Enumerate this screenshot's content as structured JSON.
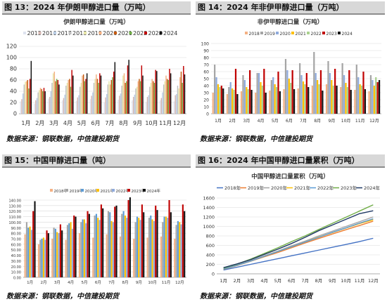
{
  "panels": [
    {
      "title": "图 13：2024 年伊朗甲醇进口量（万吨）",
      "source": "数据来源：钢联数据，中信建投期货"
    },
    {
      "title": "图 14：2024 年非伊甲醇进口量（万吨）",
      "source": "数据来源：钢联数据，中信建投期货"
    },
    {
      "title": "图 15：中国甲醇进口量（吨）",
      "source": "数据来源：钢联数据，中信建投期货"
    },
    {
      "title": "图 16：2024 年中国甲醇进口量累积（万吨）",
      "source": "数据来源：钢联数据，中信建投期货"
    }
  ],
  "chart_data": [
    {
      "type": "bar",
      "title": "伊朗甲醇进口量（万吨）",
      "categories": [
        "1月",
        "2月",
        "3月",
        "4月",
        "5月",
        "6月",
        "7月",
        "8月",
        "9月",
        "10月",
        "11月",
        "12月"
      ],
      "ylim": [
        0,
        120
      ],
      "yticks": [
        0,
        20,
        40,
        60,
        80,
        100,
        120
      ],
      "grid": true,
      "legend": "top",
      "series": [
        {
          "name": "2015",
          "color": "#dfe3f0",
          "values": [
            22,
            18,
            27,
            24,
            23,
            26,
            20,
            25,
            24,
            21,
            24,
            22
          ]
        },
        {
          "name": "2016",
          "color": "#d5b7b2",
          "values": [
            26,
            24,
            30,
            28,
            29,
            32,
            29,
            32,
            30,
            30,
            28,
            33
          ]
        },
        {
          "name": "2017",
          "color": "#b8cce4",
          "values": [
            36,
            28,
            40,
            34,
            33,
            38,
            35,
            36,
            34,
            33,
            38,
            35
          ]
        },
        {
          "name": "2018",
          "color": "#bfbfbf",
          "values": [
            52,
            38,
            55,
            50,
            48,
            55,
            52,
            50,
            45,
            48,
            52,
            50
          ]
        },
        {
          "name": "2019",
          "color": "#e7e6a8",
          "values": [
            57,
            42,
            72,
            55,
            55,
            62,
            58,
            68,
            48,
            55,
            58,
            45
          ]
        },
        {
          "name": "2020",
          "color": "#f4b183",
          "values": [
            58,
            46,
            75,
            60,
            68,
            70,
            52,
            72,
            58,
            62,
            68,
            65
          ]
        },
        {
          "name": "2021",
          "color": "#c55a11",
          "values": [
            60,
            44,
            58,
            62,
            70,
            62,
            60,
            55,
            62,
            58,
            62,
            75
          ]
        },
        {
          "name": "2022",
          "color": "#70ad47",
          "values": [
            45,
            40,
            62,
            48,
            58,
            55,
            65,
            58,
            58,
            55,
            60,
            55
          ]
        },
        {
          "name": "2023",
          "color": "#c00000",
          "values": [
            62,
            46,
            60,
            78,
            62,
            72,
            75,
            86,
            86,
            78,
            80,
            85
          ]
        },
        {
          "name": "2024",
          "color": "#111111",
          "values": [
            94,
            40,
            52,
            68,
            72,
            68,
            92,
            96,
            68,
            76,
            72,
            70
          ]
        }
      ]
    },
    {
      "type": "bar",
      "title": "非伊甲醇进口量（万吨）",
      "categories": [
        "1月",
        "2月",
        "3月",
        "4月",
        "5月",
        "6月",
        "7月",
        "8月",
        "9月",
        "10月",
        "11月",
        "12月"
      ],
      "ylim": [
        0,
        100
      ],
      "yticks": [
        0,
        10,
        20,
        30,
        40,
        50,
        60,
        70,
        80,
        90,
        100
      ],
      "grid": true,
      "legend": "top",
      "series": [
        {
          "name": "2018",
          "color": "#f4b183",
          "values": [
            30,
            28,
            32,
            30,
            33,
            35,
            36,
            40,
            42,
            38,
            34,
            32
          ]
        },
        {
          "name": "2019",
          "color": "#a5a5a5",
          "values": [
            70,
            38,
            55,
            58,
            48,
            78,
            72,
            88,
            75,
            72,
            70,
            55
          ]
        },
        {
          "name": "2020",
          "color": "#8faadc",
          "values": [
            52,
            45,
            48,
            58,
            52,
            62,
            55,
            58,
            58,
            55,
            52,
            48
          ]
        },
        {
          "name": "2021",
          "color": "#ffc000",
          "values": [
            42,
            36,
            38,
            45,
            42,
            50,
            46,
            48,
            48,
            44,
            42,
            40
          ]
        },
        {
          "name": "2022",
          "color": "#a9d18e",
          "values": [
            38,
            34,
            35,
            40,
            38,
            44,
            42,
            42,
            40,
            38,
            40,
            52
          ]
        },
        {
          "name": "2023",
          "color": "#c00000",
          "values": [
            40,
            64,
            62,
            64,
            60,
            62,
            58,
            62,
            64,
            62,
            60,
            45
          ]
        },
        {
          "name": "2024",
          "color": "#111111",
          "values": [
            36,
            28,
            34,
            30,
            32,
            35,
            38,
            33,
            40,
            34,
            35,
            48
          ]
        }
      ]
    },
    {
      "type": "bar",
      "title": "",
      "categories": [
        "1月",
        "2月",
        "3月",
        "4月",
        "5月",
        "6月",
        "7月",
        "8月",
        "9月",
        "10月",
        "11月",
        "12月"
      ],
      "ylim": [
        0,
        140
      ],
      "yticks": [
        0,
        10,
        20,
        30,
        40,
        50,
        60,
        70,
        80,
        90,
        100,
        110,
        120,
        130,
        140
      ],
      "ytick_labels": [
        "0.00",
        "10.00",
        "20.00",
        "30.00",
        "40.00",
        "50.00",
        "60.00",
        "70.00",
        "80.00",
        "90.00",
        "100.00",
        "110.00",
        "120.00",
        "130.00",
        "140.00"
      ],
      "grid": true,
      "legend": "top",
      "series": [
        {
          "name": "2018年",
          "color": "#f4b183",
          "values": [
            78,
            60,
            70,
            68,
            80,
            72,
            78,
            74,
            70,
            72,
            74,
            70
          ]
        },
        {
          "name": "2019年",
          "color": "#a5a5a5",
          "values": [
            100,
            68,
            90,
            95,
            100,
            112,
            120,
            115,
            100,
            108,
            100,
            95
          ]
        },
        {
          "name": "2020年",
          "color": "#5b9bd5",
          "values": [
            90,
            70,
            88,
            98,
            105,
            115,
            118,
            120,
            110,
            112,
            110,
            102
          ]
        },
        {
          "name": "2021年",
          "color": "#ffc000",
          "values": [
            92,
            72,
            82,
            100,
            105,
            108,
            102,
            112,
            108,
            105,
            110,
            100
          ]
        },
        {
          "name": "2022年",
          "color": "#8faadc",
          "values": [
            86,
            68,
            80,
            88,
            98,
            104,
            100,
            108,
            104,
            102,
            108,
            96
          ]
        },
        {
          "name": "2023年",
          "color": "#c00000",
          "values": [
            120,
            85,
            96,
            112,
            120,
            132,
            128,
            140,
            132,
            130,
            140,
            132
          ]
        },
        {
          "name": "2024年",
          "color": "#111111",
          "values": [
            138,
            80,
            85,
            110,
            115,
            125,
            130,
            145,
            118,
            122,
            118,
            120
          ]
        }
      ]
    },
    {
      "type": "line",
      "title": "中国甲醇进口量累积（万吨）",
      "categories": [
        "1月",
        "2月",
        "3月",
        "4月",
        "5月",
        "6月",
        "7月",
        "8月",
        "9月",
        "10月",
        "11月",
        "12月"
      ],
      "ylim": [
        0,
        1600
      ],
      "yticks": [
        0,
        200,
        400,
        600,
        800,
        1000,
        1200,
        1400,
        1600
      ],
      "grid": true,
      "legend": "top",
      "series": [
        {
          "name": "2018年",
          "color": "#4472c4",
          "values": [
            80,
            140,
            200,
            260,
            320,
            380,
            440,
            500,
            560,
            620,
            680,
            750
          ]
        },
        {
          "name": "2019年",
          "color": "#ed7d31",
          "values": [
            95,
            175,
            265,
            360,
            450,
            550,
            650,
            745,
            840,
            930,
            1020,
            1110
          ]
        },
        {
          "name": "2020年",
          "color": "#a5a5a5",
          "values": [
            100,
            185,
            280,
            380,
            480,
            590,
            690,
            800,
            900,
            1000,
            1100,
            1200
          ]
        },
        {
          "name": "2021年",
          "color": "#ffc000",
          "values": [
            100,
            180,
            270,
            370,
            470,
            570,
            670,
            775,
            870,
            965,
            1060,
            1140
          ]
        },
        {
          "name": "2022年",
          "color": "#5b9bd5",
          "values": [
            100,
            180,
            270,
            370,
            470,
            570,
            670,
            770,
            875,
            970,
            1070,
            1160
          ]
        },
        {
          "name": "2023年",
          "color": "#70ad47",
          "values": [
            120,
            205,
            310,
            430,
            550,
            680,
            800,
            935,
            1065,
            1195,
            1325,
            1455
          ]
        },
        {
          "name": "2024年",
          "color": "#1f3864",
          "values": [
            130,
            210,
            300,
            410,
            520,
            640,
            770,
            910,
            1030,
            1150,
            1270,
            1330
          ]
        }
      ]
    }
  ]
}
